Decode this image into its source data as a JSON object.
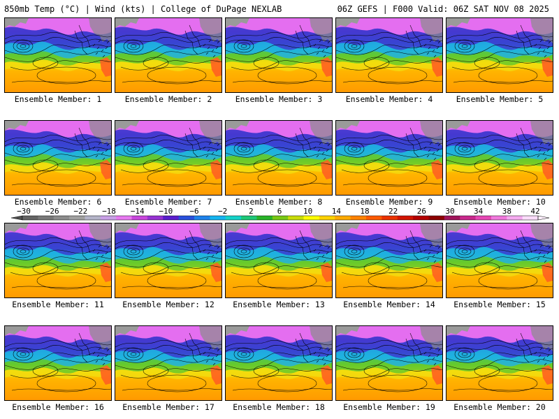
{
  "header": {
    "left": "850mb Temp (°C) | Wind (kts) | College of DuPage NEXLAB",
    "right": "06Z GEFS | F000 Valid: 06Z SAT NOV 08 2025"
  },
  "members": [
    {
      "label": "Ensemble Member: 1"
    },
    {
      "label": "Ensemble Member: 2"
    },
    {
      "label": "Ensemble Member: 3"
    },
    {
      "label": "Ensemble Member: 4"
    },
    {
      "label": "Ensemble Member: 5"
    },
    {
      "label": "Ensemble Member: 6"
    },
    {
      "label": "Ensemble Member: 7"
    },
    {
      "label": "Ensemble Member: 8"
    },
    {
      "label": "Ensemble Member: 9"
    },
    {
      "label": "Ensemble Member: 10"
    },
    {
      "label": "Ensemble Member: 11"
    },
    {
      "label": "Ensemble Member: 12"
    },
    {
      "label": "Ensemble Member: 13"
    },
    {
      "label": "Ensemble Member: 14"
    },
    {
      "label": "Ensemble Member: 15"
    },
    {
      "label": "Ensemble Member: 16"
    },
    {
      "label": "Ensemble Member: 17"
    },
    {
      "label": "Ensemble Member: 18"
    },
    {
      "label": "Ensemble Member: 19"
    },
    {
      "label": "Ensemble Member: 20"
    }
  ],
  "colorbar": {
    "labels": [
      "−30",
      "−26",
      "−22",
      "−18",
      "−14",
      "−10",
      "−6",
      "−2",
      "2",
      "6",
      "10",
      "14",
      "18",
      "22",
      "26",
      "30",
      "34",
      "38",
      "42"
    ],
    "colors": [
      "#646464",
      "#787878",
      "#8c8c8c",
      "#a0a0a0",
      "#b4b4c8",
      "#c8a0e6",
      "#e678f0",
      "#c846dc",
      "#9632d2",
      "#5a1ecd",
      "#2850dc",
      "#1e82eb",
      "#14b4f0",
      "#14d2c8",
      "#1ec878",
      "#28b428",
      "#78c814",
      "#c8dc0a",
      "#ffff00",
      "#ffd200",
      "#ffaa00",
      "#ff8200",
      "#ff5a00",
      "#eb3200",
      "#d21400",
      "#b40000",
      "#8c0000",
      "#a0145a",
      "#c8288c",
      "#e646b4",
      "#f078dc",
      "#f5aaf0",
      "#fadcfa"
    ]
  }
}
